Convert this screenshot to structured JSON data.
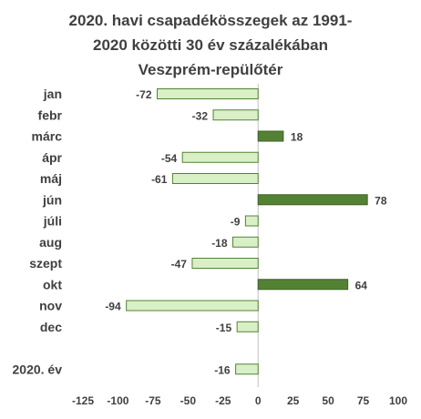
{
  "chart_data": {
    "type": "bar",
    "orientation": "horizontal",
    "title_lines": [
      "2020. havi csapadékösszegek  az 1991-",
      "2020 közötti  30 év százalékában",
      "Veszprém-repülőtér"
    ],
    "categories": [
      "jan",
      "febr",
      "márc",
      "ápr",
      "máj",
      "jún",
      "júli",
      "aug",
      "szept",
      "okt",
      "nov",
      "dec",
      "",
      "2020. év"
    ],
    "values": [
      -72,
      -32,
      18,
      -54,
      -61,
      78,
      -9,
      -18,
      -47,
      64,
      -94,
      -15,
      null,
      -16
    ],
    "value_labels": [
      "-72",
      "-32",
      "18",
      "-54",
      "-61",
      "78",
      "-9",
      "-18",
      "-47",
      "64",
      "-94",
      "-15",
      "",
      "-16"
    ],
    "xlim": [
      -125,
      100
    ],
    "xticks": [
      -125,
      -100,
      -75,
      -50,
      -25,
      0,
      25,
      50,
      75,
      100
    ],
    "xtick_labels": [
      "-125",
      "-100",
      "-75",
      "-50",
      "-25",
      "0",
      "25",
      "50",
      "75",
      "100"
    ],
    "grid": false,
    "legend": "none",
    "colors": {
      "positive_fill": "#548235",
      "positive_border": "#3d6126",
      "negative_fill": "#d9f0c6",
      "negative_border": "#548235",
      "axis": "#bfbfbf",
      "text": "#404040"
    }
  }
}
